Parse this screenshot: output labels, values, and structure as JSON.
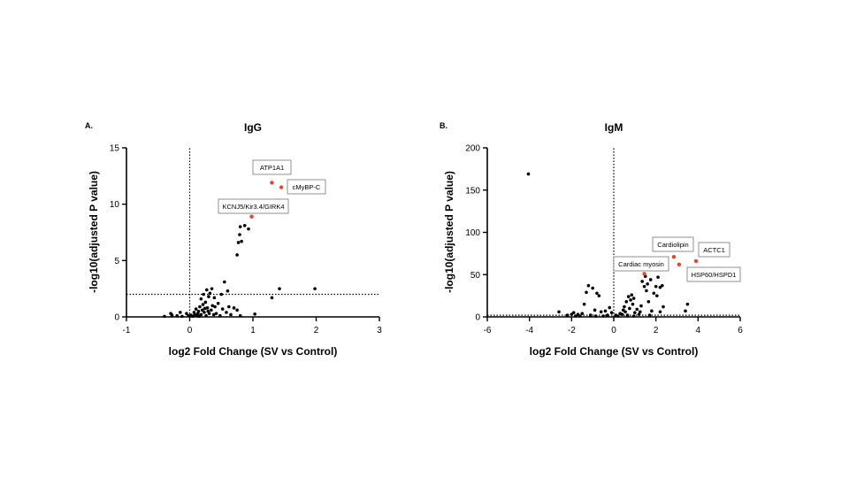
{
  "chart_data": [
    {
      "type": "scatter",
      "panel": "A.",
      "title": "IgG",
      "xlabel": "log2 Fold Change (SV vs Control)",
      "ylabel": "-log10(adjusted P value)",
      "xlim": [
        -1,
        3
      ],
      "ylim": [
        0,
        15
      ],
      "xticks": [
        "-1",
        "0",
        "1",
        "2",
        "3"
      ],
      "yticks": [
        "0",
        "5",
        "10",
        "15"
      ],
      "threshold_y": 2,
      "threshold_x": 0,
      "colors": {
        "points": "#000000",
        "highlight": "#e8442c"
      },
      "points": [
        [
          -0.4,
          0.05
        ],
        [
          -0.3,
          0.3
        ],
        [
          -0.28,
          0.15
        ],
        [
          -0.2,
          0.1
        ],
        [
          -0.15,
          0.4
        ],
        [
          -0.12,
          0.05
        ],
        [
          -0.05,
          0.3
        ],
        [
          -0.02,
          0.1
        ],
        [
          0.02,
          0.15
        ],
        [
          0.05,
          0.05
        ],
        [
          0.07,
          0.4
        ],
        [
          0.08,
          0.2
        ],
        [
          0.1,
          0.7
        ],
        [
          0.12,
          0.1
        ],
        [
          0.13,
          0.3
        ],
        [
          0.14,
          0.5
        ],
        [
          0.15,
          0.05
        ],
        [
          0.16,
          0.9
        ],
        [
          0.18,
          0.2
        ],
        [
          0.18,
          1.6
        ],
        [
          0.2,
          0.6
        ],
        [
          0.21,
          1.1
        ],
        [
          0.22,
          2.0
        ],
        [
          0.23,
          0.4
        ],
        [
          0.24,
          0.75
        ],
        [
          0.25,
          1.3
        ],
        [
          0.26,
          0.1
        ],
        [
          0.27,
          2.4
        ],
        [
          0.28,
          0.8
        ],
        [
          0.29,
          0.5
        ],
        [
          0.3,
          1.8
        ],
        [
          0.31,
          0.3
        ],
        [
          0.32,
          2.1
        ],
        [
          0.34,
          0.6
        ],
        [
          0.35,
          2.5
        ],
        [
          0.36,
          1.0
        ],
        [
          0.38,
          0.2
        ],
        [
          0.39,
          1.7
        ],
        [
          0.4,
          0.9
        ],
        [
          0.42,
          0.3
        ],
        [
          0.45,
          1.2
        ],
        [
          0.48,
          0.1
        ],
        [
          0.5,
          2.0
        ],
        [
          0.52,
          0.7
        ],
        [
          0.55,
          3.1
        ],
        [
          0.58,
          0.4
        ],
        [
          0.62,
          0.9
        ],
        [
          0.65,
          0.2
        ],
        [
          0.7,
          0.8
        ],
        [
          0.75,
          0.6
        ],
        [
          0.8,
          0.1
        ],
        [
          0.6,
          2.3
        ],
        [
          0.75,
          5.5
        ],
        [
          0.77,
          6.6
        ],
        [
          0.79,
          7.3
        ],
        [
          0.8,
          8.0
        ],
        [
          0.82,
          6.7
        ],
        [
          0.87,
          8.1
        ],
        [
          0.93,
          7.8
        ],
        [
          1.03,
          0.25
        ],
        [
          1.3,
          1.7
        ],
        [
          1.42,
          2.5
        ],
        [
          1.98,
          2.5
        ]
      ],
      "highlights": [
        {
          "label": "ATP1A1",
          "x": 1.3,
          "y": 11.9
        },
        {
          "label": "cMyBP-C",
          "x": 1.45,
          "y": 11.5
        },
        {
          "label": "KCNJ5/Kir3.4/GIRK4",
          "x": 0.98,
          "y": 8.9
        }
      ]
    },
    {
      "type": "scatter",
      "panel": "B.",
      "title": "IgM",
      "xlabel": "log2 Fold Change (SV vs Control)",
      "ylabel": "-log10(adjusted P value)",
      "xlim": [
        -6,
        6
      ],
      "ylim": [
        0,
        200
      ],
      "xticks": [
        "-6",
        "-4",
        "-2",
        "0",
        "2",
        "4",
        "6"
      ],
      "yticks": [
        "0",
        "50",
        "100",
        "150",
        "200"
      ],
      "threshold_y": 2,
      "threshold_x": 0,
      "colors": {
        "points": "#000000",
        "highlight": "#e8442c"
      },
      "points": [
        [
          -4.05,
          169
        ],
        [
          -2.6,
          6
        ],
        [
          -2.2,
          2
        ],
        [
          -2.0,
          3
        ],
        [
          -1.9,
          5
        ],
        [
          -1.8,
          1
        ],
        [
          -1.7,
          3
        ],
        [
          -1.6,
          1
        ],
        [
          -1.5,
          4
        ],
        [
          -1.4,
          15
        ],
        [
          -1.3,
          29
        ],
        [
          -1.2,
          37
        ],
        [
          -1.1,
          2
        ],
        [
          -1.0,
          34
        ],
        [
          -0.9,
          8
        ],
        [
          -0.85,
          1
        ],
        [
          -0.8,
          28
        ],
        [
          -0.7,
          25
        ],
        [
          -0.6,
          6
        ],
        [
          -0.5,
          1
        ],
        [
          -0.4,
          7
        ],
        [
          -0.3,
          2
        ],
        [
          -0.2,
          11
        ],
        [
          -0.1,
          5
        ],
        [
          0.1,
          2
        ],
        [
          0.2,
          1
        ],
        [
          0.3,
          4
        ],
        [
          0.4,
          3
        ],
        [
          0.45,
          8
        ],
        [
          0.5,
          12
        ],
        [
          0.55,
          6
        ],
        [
          0.6,
          18
        ],
        [
          0.65,
          2
        ],
        [
          0.7,
          24
        ],
        [
          0.75,
          10
        ],
        [
          0.8,
          20
        ],
        [
          0.85,
          26
        ],
        [
          0.9,
          15
        ],
        [
          0.95,
          22
        ],
        [
          1.0,
          5
        ],
        [
          1.1,
          9
        ],
        [
          1.2,
          3
        ],
        [
          1.3,
          13
        ],
        [
          1.35,
          42
        ],
        [
          1.45,
          36
        ],
        [
          1.55,
          31
        ],
        [
          1.6,
          39
        ],
        [
          1.7,
          2
        ],
        [
          1.75,
          44
        ],
        [
          1.8,
          7
        ],
        [
          1.9,
          28
        ],
        [
          2.0,
          36
        ],
        [
          2.05,
          25
        ],
        [
          2.1,
          47
        ],
        [
          2.2,
          35
        ],
        [
          2.3,
          37
        ],
        [
          2.35,
          12
        ],
        [
          2.2,
          6
        ],
        [
          1.5,
          48
        ],
        [
          3.5,
          15
        ],
        [
          3.4,
          7
        ],
        [
          1.25,
          6
        ],
        [
          0.95,
          1
        ],
        [
          1.65,
          18
        ]
      ],
      "highlights": [
        {
          "label": "Cardiolipin",
          "x": 2.85,
          "y": 71
        },
        {
          "label": "ACTC1",
          "x": 3.9,
          "y": 66
        },
        {
          "label": "Cardiac myosin",
          "x": 1.45,
          "y": 51
        },
        {
          "label": "HSP60/HSPD1",
          "x": 3.1,
          "y": 62
        }
      ]
    }
  ]
}
